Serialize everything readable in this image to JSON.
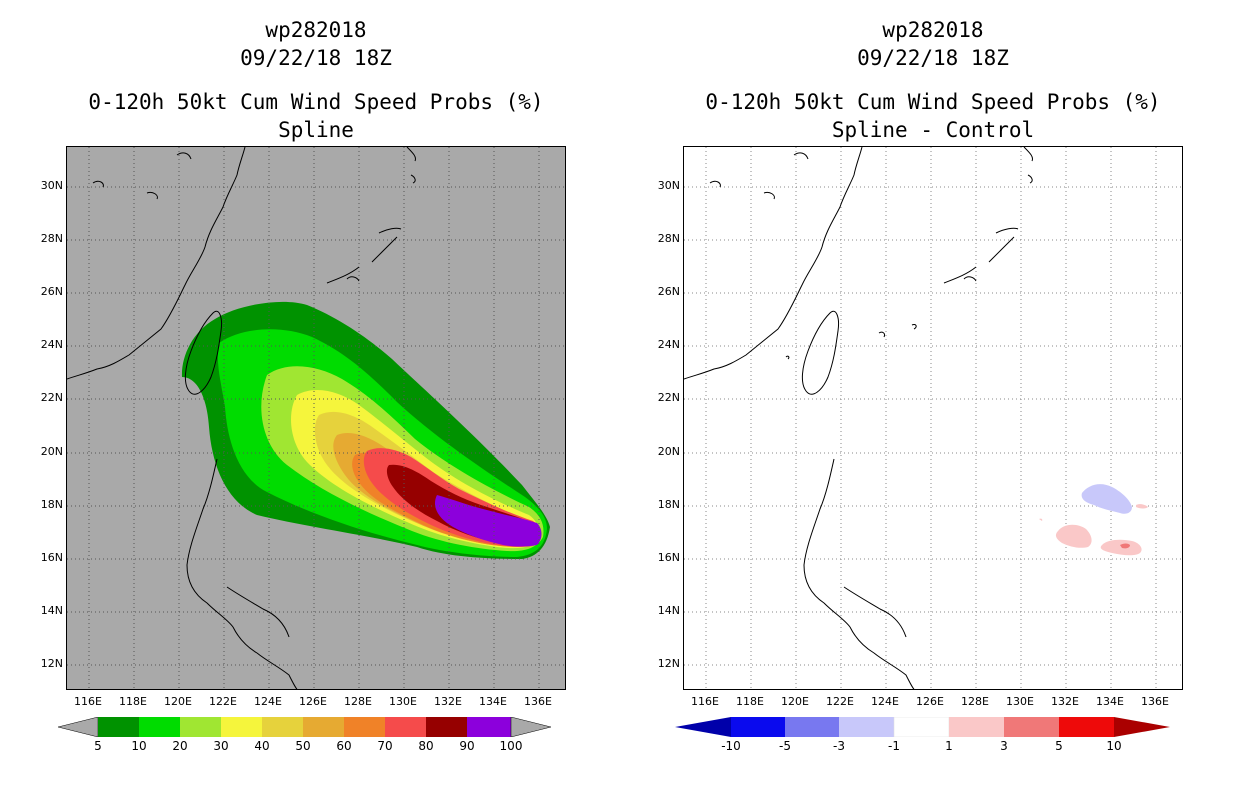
{
  "left_panel": {
    "title_lines": [
      "wp282018",
      "09/22/18 18Z",
      "0-120h 50kt Cum Wind Speed Probs (%)",
      "Spline"
    ],
    "lat_labels": [
      "30N",
      "28N",
      "26N",
      "24N",
      "22N",
      "20N",
      "18N",
      "16N",
      "14N",
      "12N"
    ],
    "lon_labels": [
      "116E",
      "118E",
      "120E",
      "122E",
      "124E",
      "126E",
      "128E",
      "130E",
      "132E",
      "134E",
      "136E"
    ],
    "background": "#a9a9a9",
    "colorbar": {
      "labels": [
        "5",
        "10",
        "20",
        "30",
        "40",
        "50",
        "60",
        "70",
        "80",
        "90",
        "100"
      ],
      "colors": [
        "#009200",
        "#00dc00",
        "#a0e632",
        "#f5f53c",
        "#e6d23c",
        "#e6aa32",
        "#f08228",
        "#f54b4b",
        "#960000",
        "#8c00dc"
      ]
    }
  },
  "right_panel": {
    "title_lines": [
      "wp282018",
      "09/22/18 18Z",
      "0-120h 50kt Cum Wind Speed Probs (%)",
      "Spline - Control"
    ],
    "lat_labels": [
      "30N",
      "28N",
      "26N",
      "24N",
      "22N",
      "20N",
      "18N",
      "16N",
      "14N",
      "12N"
    ],
    "lon_labels": [
      "116E",
      "118E",
      "120E",
      "122E",
      "124E",
      "126E",
      "128E",
      "130E",
      "132E",
      "134E",
      "136E"
    ],
    "background": "#ffffff",
    "colorbar": {
      "labels": [
        "-10",
        "-5",
        "-3",
        "-1",
        "1",
        "3",
        "5",
        "10"
      ],
      "colors": [
        "#0000aa",
        "#0a0aee",
        "#7878f0",
        "#c8c8fa",
        "#ffffff",
        "#fac8c8",
        "#f07878",
        "#ee0a0a",
        "#aa0000"
      ]
    }
  }
}
